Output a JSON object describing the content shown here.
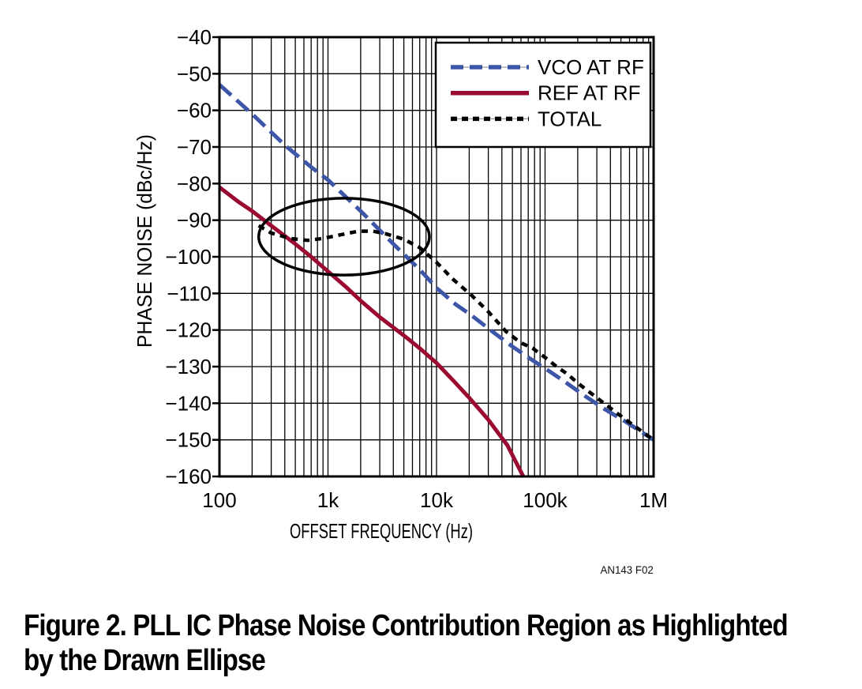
{
  "figure_ref": "AN143 F02",
  "caption": {
    "line1": "Figure 2. PLL IC Phase Noise Contribution Region as Highlighted",
    "line2": "by the Drawn Ellipse"
  },
  "colors": {
    "vco": "#3E56A8",
    "ref": "#9B0B31",
    "total": "#000000",
    "grid": "#000000",
    "legend_hairline": "#999999"
  },
  "chart_data": {
    "type": "line",
    "x_scale": "log",
    "title": "",
    "xlabel": "OFFSET FREQUENCY (Hz)",
    "ylabel": "PHASE NOISE (dBc/Hz)",
    "xlim": [
      100,
      1000000
    ],
    "ylim": [
      -160,
      -40
    ],
    "grid": {
      "x_minor_log": true,
      "y_major_step_db": 10,
      "box": true
    },
    "x_ticks": {
      "values": [
        100,
        1000,
        10000,
        100000,
        1000000
      ],
      "labels": [
        "100",
        "1k",
        "10k",
        "100k",
        "1M"
      ]
    },
    "y_ticks": {
      "values": [
        -40,
        -50,
        -60,
        -70,
        -80,
        -90,
        -100,
        -110,
        -120,
        -130,
        -140,
        -150,
        -160
      ],
      "labels": [
        "−40",
        "−50",
        "−60",
        "−70",
        "−80",
        "−90",
        "−100",
        "−110",
        "−120",
        "−130",
        "−140",
        "−150",
        "−160"
      ]
    },
    "legend": {
      "position": "top-right",
      "entries": [
        {
          "label": "VCO AT RF",
          "color": "#3E56A8",
          "style": "dashed-long"
        },
        {
          "label": "REF AT RF",
          "color": "#9B0B31",
          "style": "solid"
        },
        {
          "label": "TOTAL",
          "color": "#000000",
          "style": "dashed-short"
        }
      ]
    },
    "series": [
      {
        "name": "VCO AT RF",
        "color": "#3E56A8",
        "style": "dashed-long",
        "points": [
          [
            100,
            -53
          ],
          [
            200,
            -61
          ],
          [
            400,
            -69.5
          ],
          [
            700,
            -75.5
          ],
          [
            1000,
            -79
          ],
          [
            2000,
            -87.5
          ],
          [
            4000,
            -96.5
          ],
          [
            7000,
            -103.5
          ],
          [
            10000,
            -108.5
          ],
          [
            15000,
            -113
          ],
          [
            21000,
            -116
          ],
          [
            33000,
            -120.5
          ],
          [
            50000,
            -124.5
          ],
          [
            70000,
            -127.5
          ],
          [
            100000,
            -130.5
          ],
          [
            150000,
            -134
          ],
          [
            220000,
            -137.5
          ],
          [
            350000,
            -141.5
          ],
          [
            550000,
            -145
          ],
          [
            1000000,
            -150
          ]
        ]
      },
      {
        "name": "REF AT RF",
        "color": "#9B0B31",
        "style": "solid",
        "points": [
          [
            100,
            -81
          ],
          [
            150,
            -85
          ],
          [
            200,
            -87.5
          ],
          [
            300,
            -91.5
          ],
          [
            500,
            -96.5
          ],
          [
            700,
            -100
          ],
          [
            1000,
            -104
          ],
          [
            1500,
            -108.5
          ],
          [
            2000,
            -112
          ],
          [
            3000,
            -116.5
          ],
          [
            5000,
            -121.5
          ],
          [
            7000,
            -125
          ],
          [
            10000,
            -129
          ],
          [
            15000,
            -134.5
          ],
          [
            20000,
            -138.5
          ],
          [
            30000,
            -144.5
          ],
          [
            45000,
            -151.5
          ],
          [
            63000,
            -160
          ]
        ]
      },
      {
        "name": "TOTAL",
        "color": "#000000",
        "style": "dashed-short",
        "points": [
          [
            230,
            -91.5
          ],
          [
            300,
            -93.5
          ],
          [
            450,
            -95
          ],
          [
            650,
            -95.5
          ],
          [
            900,
            -95
          ],
          [
            1300,
            -94
          ],
          [
            1900,
            -93
          ],
          [
            2600,
            -93
          ],
          [
            3500,
            -93.8
          ],
          [
            5000,
            -95.2
          ],
          [
            7000,
            -97.5
          ],
          [
            10000,
            -101.5
          ],
          [
            14000,
            -106
          ],
          [
            21000,
            -110.5
          ],
          [
            30000,
            -115
          ],
          [
            44000,
            -120.5
          ],
          [
            60000,
            -123.5
          ],
          [
            77000,
            -125
          ],
          [
            100000,
            -127.5
          ],
          [
            128000,
            -130
          ],
          [
            160000,
            -132
          ],
          [
            200000,
            -134.5
          ],
          [
            300000,
            -138.5
          ],
          [
            450000,
            -142.5
          ],
          [
            650000,
            -146
          ],
          [
            1000000,
            -150
          ]
        ]
      }
    ],
    "annotation_ellipse": {
      "description": "PLL IC phase noise contribution region",
      "freq_range": [
        230,
        8600
      ],
      "noise_range": [
        -84,
        -105
      ]
    }
  }
}
